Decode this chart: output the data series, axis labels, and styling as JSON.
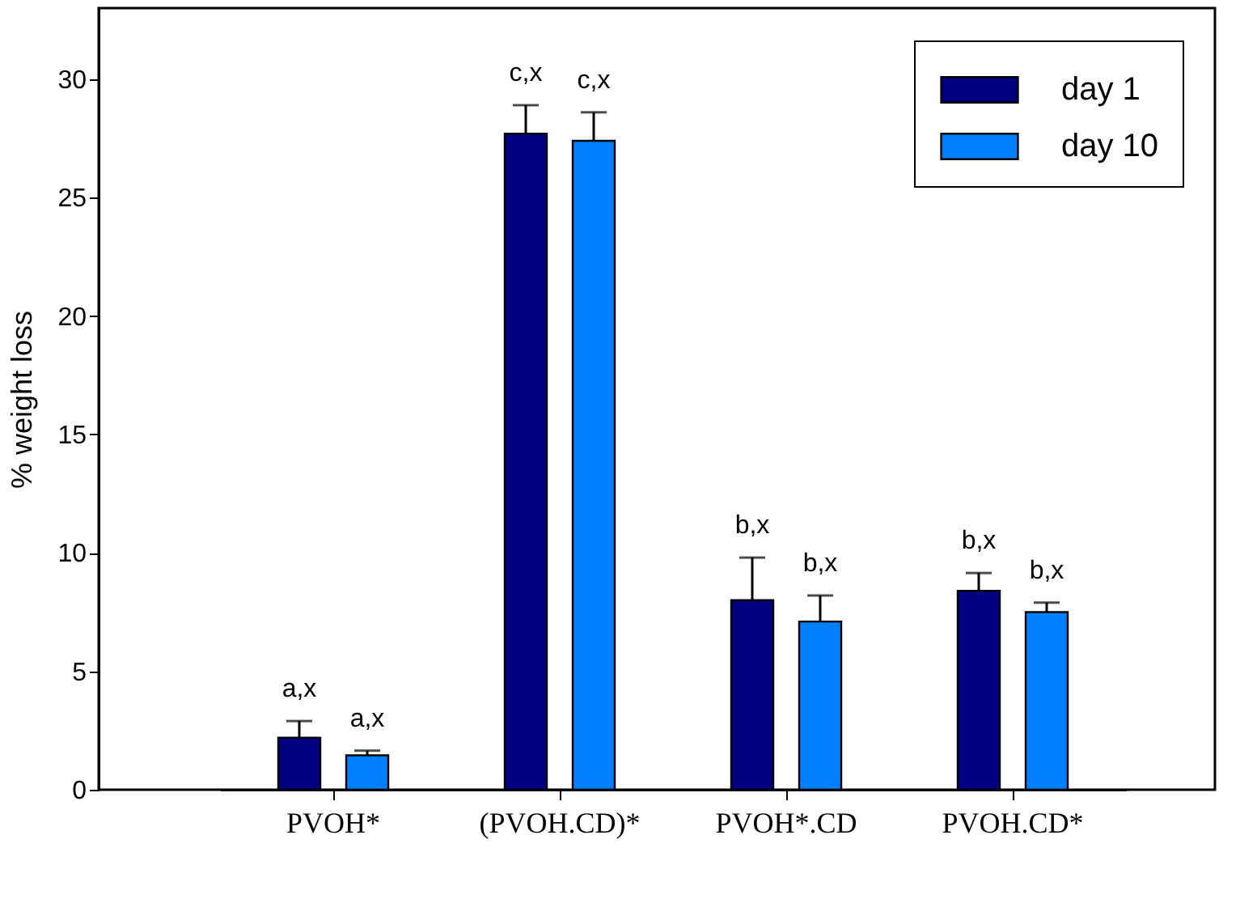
{
  "chart_data": {
    "type": "bar",
    "categories": [
      "PVOH*",
      "(PVOH.CD)*",
      "PVOH*.CD",
      "PVOH.CD*"
    ],
    "series": [
      {
        "name": "day 1",
        "color": "#000080",
        "values": [
          2.2,
          27.7,
          8.0,
          8.4
        ],
        "errors": [
          0.7,
          1.2,
          1.8,
          0.75
        ],
        "value_labels": [
          "a,x",
          "c,x",
          "b,x",
          "b,x"
        ]
      },
      {
        "name": "day 10",
        "color": "#0080ff",
        "values": [
          1.45,
          27.4,
          7.1,
          7.5
        ],
        "errors": [
          0.2,
          1.2,
          1.1,
          0.4
        ],
        "value_labels": [
          "a,x",
          "c,x",
          "b,x",
          "b,x"
        ]
      }
    ],
    "ylabel": "% weight loss",
    "ylim": [
      0,
      33
    ],
    "yticks": [
      0,
      5,
      10,
      15,
      20,
      25,
      30
    ],
    "grid": false,
    "legend": "top right"
  }
}
